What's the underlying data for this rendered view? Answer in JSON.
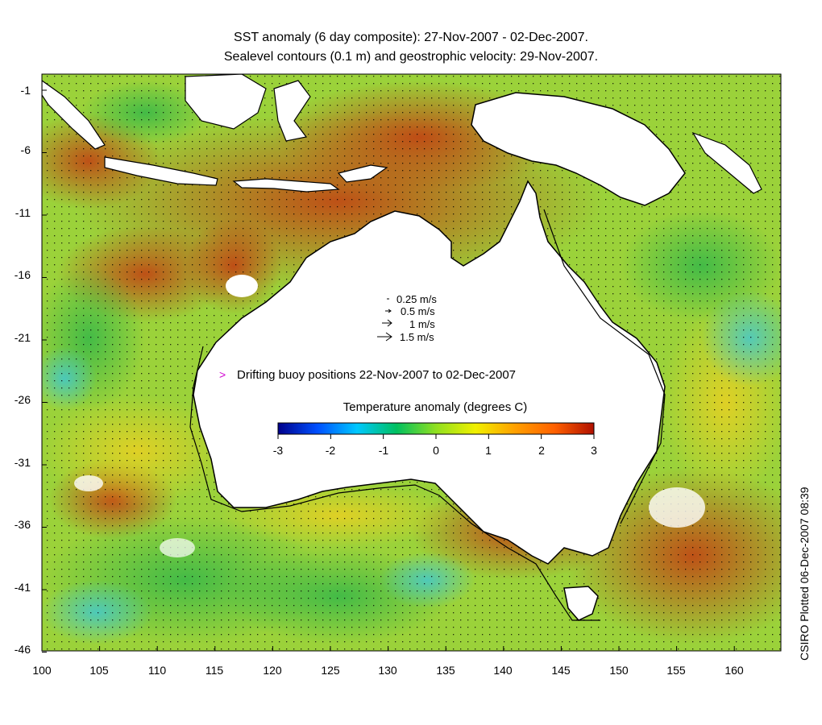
{
  "title_line1": "SST anomaly (6 day composite): 27-Nov-2007 - 02-Dec-2007.",
  "title_line2": "Sealevel contours (0.1 m) and geostrophic velocity: 29-Nov-2007.",
  "y_ticks": [
    "-1",
    "-6",
    "-11",
    "-16",
    "-21",
    "-26",
    "-31",
    "-36",
    "-41",
    "-46"
  ],
  "x_ticks": [
    "100",
    "105",
    "110",
    "115",
    "120",
    "125",
    "130",
    "135",
    "140",
    "145",
    "150",
    "155",
    "160"
  ],
  "velocity_legend": [
    "0.25 m/s",
    "0.5 m/s",
    "1 m/s",
    "1.5 m/s"
  ],
  "buoy_marker": ">",
  "buoy_label": "Drifting buoy positions 22-Nov-2007 to 02-Dec-2007",
  "colorbar_title": "Temperature anomaly (degrees C)",
  "colorbar_ticks": [
    "-3",
    "-2",
    "-1",
    "0",
    "1",
    "2",
    "3"
  ],
  "colorbar_colors": [
    "#00008b",
    "#0050ff",
    "#00c8ff",
    "#00c060",
    "#90e020",
    "#f0f000",
    "#ffa000",
    "#ff6000",
    "#b01000"
  ],
  "credit": "CSIRO Plotted 06-Dec-2007 08:39"
}
